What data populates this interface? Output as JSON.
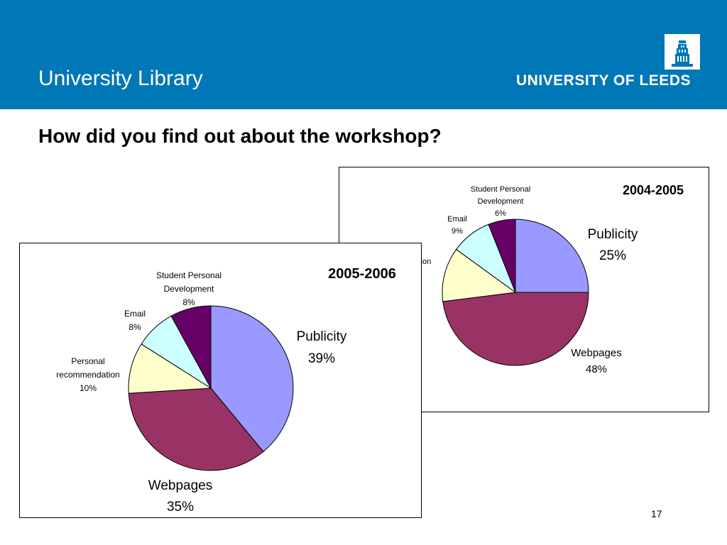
{
  "header": {
    "title": "University Library",
    "logo_text": "UNIVERSITY OF LEEDS",
    "color": "#0077b7"
  },
  "slide_title": "How did you find out about the workshop?",
  "page_number": "17",
  "chart_data": [
    {
      "type": "pie",
      "title": "2004-2005",
      "slices": [
        {
          "name": "Publicity",
          "value": 25,
          "label": "25%",
          "color": "#9999ff"
        },
        {
          "name": "Webpages",
          "value": 48,
          "label": "48%",
          "color": "#993366"
        },
        {
          "name": "Personal recommendation",
          "value": 12,
          "label": "",
          "color": "#ffffcc"
        },
        {
          "name": "Email",
          "value": 9,
          "label": "9%",
          "color": "#ccffff"
        },
        {
          "name": "Student Personal Development",
          "value": 6,
          "label": "6%",
          "color": "#660066"
        }
      ]
    },
    {
      "type": "pie",
      "title": "2005-2006",
      "slices": [
        {
          "name": "Publicity",
          "value": 39,
          "label": "39%",
          "color": "#9999ff"
        },
        {
          "name": "Webpages",
          "value": 35,
          "label": "35%",
          "color": "#993366"
        },
        {
          "name": "Personal recommendation",
          "value": 10,
          "label": "10%",
          "color": "#ffffcc"
        },
        {
          "name": "Email",
          "value": 8,
          "label": "8%",
          "color": "#ccffff"
        },
        {
          "name": "Student Personal Development",
          "value": 8,
          "label": "8%",
          "color": "#660066"
        }
      ]
    }
  ],
  "labels_2004": {
    "publicity": "Publicity",
    "publicity_pct": "25%",
    "webpages": "Webpages",
    "webpages_pct": "48%",
    "email": "Email",
    "email_pct": "9%",
    "spd_line1": "Student Personal",
    "spd_line2": "Development",
    "spd_pct": "6%",
    "personal_fragment": "ion"
  },
  "labels_2005": {
    "publicity": "Publicity",
    "publicity_pct": "39%",
    "webpages": "Webpages",
    "webpages_pct": "35%",
    "email": "Email",
    "email_pct": "8%",
    "spd_line1": "Student Personal",
    "spd_line2": "Development",
    "spd_pct": "8%",
    "personal_line1": "Personal",
    "personal_line2": "recommendation",
    "personal_pct": "10%"
  }
}
